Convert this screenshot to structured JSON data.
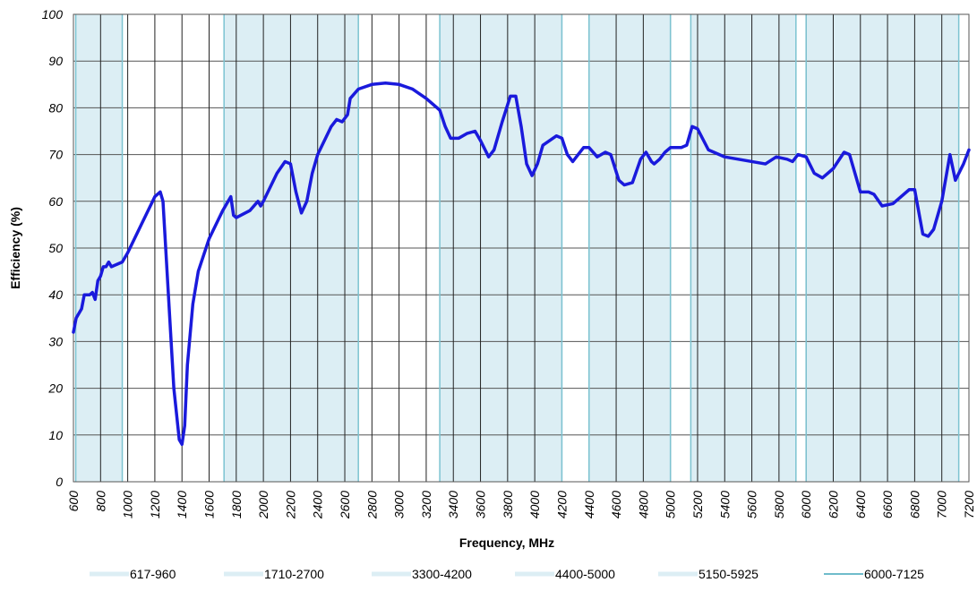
{
  "chart_data": {
    "type": "line",
    "xlabel": "Frequency, MHz",
    "ylabel": "Efficiency (%)",
    "xlim": [
      600,
      7200
    ],
    "ylim": [
      0,
      100
    ],
    "xticks": [
      600,
      800,
      1000,
      1200,
      1400,
      1600,
      1800,
      2000,
      2200,
      2400,
      2600,
      2800,
      3000,
      3200,
      3400,
      3600,
      3800,
      4000,
      4200,
      4400,
      4600,
      4800,
      5000,
      5200,
      5400,
      5600,
      5800,
      6000,
      6200,
      6400,
      6600,
      6800,
      7000,
      7200
    ],
    "yticks": [
      0,
      10,
      20,
      30,
      40,
      50,
      60,
      70,
      80,
      90,
      100
    ],
    "grid": true,
    "color": "#1a1adc",
    "bands": [
      {
        "name": "617-960",
        "range": [
          617,
          960
        ],
        "color": "#dceef4"
      },
      {
        "name": "1710-2700",
        "range": [
          1710,
          2700
        ],
        "color": "#dceef4"
      },
      {
        "name": "3300-4200",
        "range": [
          3300,
          4200
        ],
        "color": "#dceef4"
      },
      {
        "name": "4400-5000",
        "range": [
          4400,
          5000
        ],
        "color": "#dceef4"
      },
      {
        "name": "5150-5925",
        "range": [
          5150,
          5925
        ],
        "color": "#dceef4"
      },
      {
        "name": "6000-7125",
        "range": [
          6000,
          7125
        ],
        "color": "#dceef4"
      }
    ],
    "x": [
      600,
      620,
      660,
      680,
      720,
      740,
      760,
      780,
      800,
      820,
      840,
      860,
      880,
      920,
      960,
      1000,
      1100,
      1200,
      1240,
      1260,
      1300,
      1340,
      1380,
      1400,
      1420,
      1440,
      1480,
      1520,
      1600,
      1700,
      1760,
      1780,
      1800,
      1900,
      1960,
      1980,
      2000,
      2100,
      2160,
      2200,
      2240,
      2280,
      2320,
      2360,
      2400,
      2500,
      2540,
      2580,
      2620,
      2640,
      2700,
      2800,
      2900,
      3000,
      3100,
      3200,
      3300,
      3340,
      3380,
      3440,
      3500,
      3560,
      3600,
      3660,
      3700,
      3760,
      3820,
      3860,
      3900,
      3940,
      3980,
      4020,
      4060,
      4160,
      4200,
      4240,
      4280,
      4320,
      4360,
      4400,
      4460,
      4520,
      4560,
      4620,
      4660,
      4720,
      4780,
      4820,
      4860,
      4880,
      4920,
      4960,
      5000,
      5080,
      5120,
      5160,
      5200,
      5280,
      5400,
      5600,
      5700,
      5780,
      5860,
      5900,
      5940,
      6000,
      6060,
      6120,
      6200,
      6280,
      6320,
      6400,
      6460,
      6500,
      6560,
      6640,
      6760,
      6800,
      6860,
      6900,
      6940,
      7000,
      7060,
      7100,
      7160,
      7200
    ],
    "values": [
      32,
      35,
      37,
      40,
      40,
      40.5,
      39,
      43,
      44,
      46,
      46,
      47,
      46,
      46.5,
      47,
      49,
      55,
      61,
      62,
      60,
      40,
      20,
      9,
      8,
      12,
      25,
      38,
      45,
      52,
      58,
      61,
      57,
      56.5,
      58,
      60,
      59,
      60,
      66,
      68.5,
      68,
      62,
      57.5,
      60,
      66,
      70,
      76,
      77.5,
      77,
      78.5,
      82,
      84,
      85,
      85.3,
      85,
      84,
      82,
      79.5,
      76,
      73.5,
      73.5,
      74.5,
      75,
      73,
      69.5,
      71,
      77,
      82.5,
      82.5,
      76,
      68,
      65.5,
      68,
      72,
      74,
      73.5,
      70,
      68.5,
      70,
      71.5,
      71.5,
      69.5,
      70.5,
      70,
      64.5,
      63.5,
      64,
      69,
      70.5,
      68.5,
      68,
      69,
      70.5,
      71.5,
      71.5,
      72,
      76,
      75.5,
      71,
      69.5,
      68.5,
      68,
      69.5,
      69,
      68.5,
      70,
      69.5,
      66,
      65,
      67,
      70.5,
      70,
      62,
      62,
      61.5,
      59,
      59.5,
      62.5,
      62.5,
      53,
      52.5,
      54,
      60,
      70,
      64.5,
      68,
      71
    ]
  }
}
